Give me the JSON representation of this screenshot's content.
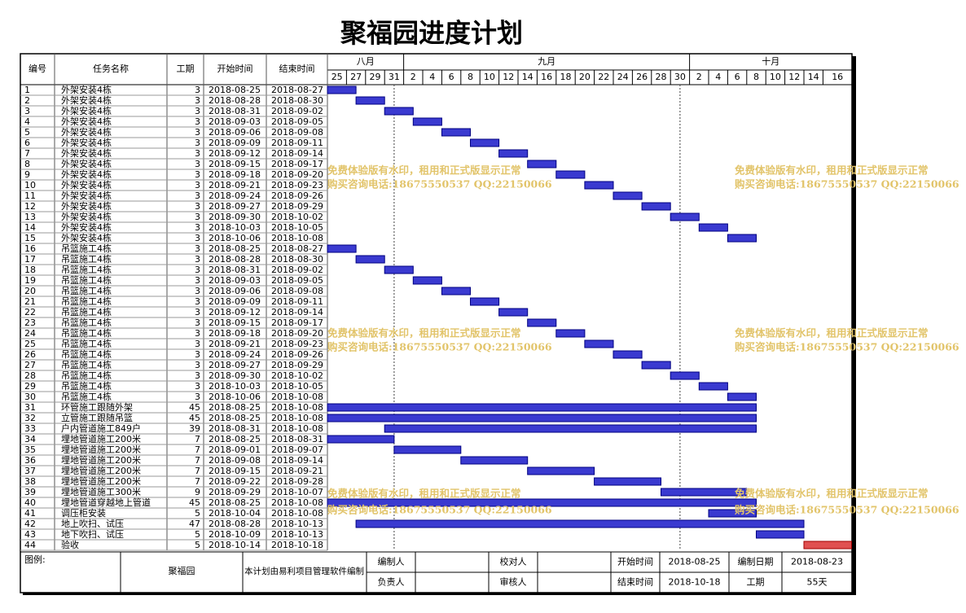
{
  "chart_data": {
    "type": "gantt",
    "title": "聚福园进度计划",
    "columns": [
      "编号",
      "任务名称",
      "工期",
      "开始时间",
      "结束时间"
    ],
    "months": [
      "八月",
      "九月",
      "十月"
    ],
    "days": [
      25,
      27,
      29,
      31,
      2,
      4,
      6,
      8,
      10,
      12,
      14,
      16,
      18,
      20,
      22,
      24,
      26,
      28,
      30,
      2,
      4,
      6,
      8,
      10,
      12,
      14,
      16
    ],
    "tasks": [
      [
        1,
        "外架安装4栋",
        3,
        "2018-08-25",
        "2018-08-27"
      ],
      [
        2,
        "外架安装4栋",
        3,
        "2018-08-28",
        "2018-08-30"
      ],
      [
        3,
        "外架安装4栋",
        3,
        "2018-08-31",
        "2018-09-02"
      ],
      [
        4,
        "外架安装4栋",
        3,
        "2018-09-03",
        "2018-09-05"
      ],
      [
        5,
        "外架安装4栋",
        3,
        "2018-09-06",
        "2018-09-08"
      ],
      [
        6,
        "外架安装4栋",
        3,
        "2018-09-09",
        "2018-09-11"
      ],
      [
        7,
        "外架安装4栋",
        3,
        "2018-09-12",
        "2018-09-14"
      ],
      [
        8,
        "外架安装4栋",
        3,
        "2018-09-15",
        "2018-09-17"
      ],
      [
        9,
        "外架安装4栋",
        3,
        "2018-09-18",
        "2018-09-20"
      ],
      [
        10,
        "外架安装4栋",
        3,
        "2018-09-21",
        "2018-09-23"
      ],
      [
        11,
        "外架安装4栋",
        3,
        "2018-09-24",
        "2018-09-26"
      ],
      [
        12,
        "外架安装4栋",
        3,
        "2018-09-27",
        "2018-09-29"
      ],
      [
        13,
        "外架安装4栋",
        3,
        "2018-09-30",
        "2018-10-02"
      ],
      [
        14,
        "外架安装4栋",
        3,
        "2018-10-03",
        "2018-10-05"
      ],
      [
        15,
        "外架安装4栋",
        3,
        "2018-10-06",
        "2018-10-08"
      ],
      [
        16,
        "吊篮施工4栋",
        3,
        "2018-08-25",
        "2018-08-27"
      ],
      [
        17,
        "吊篮施工4栋",
        3,
        "2018-08-28",
        "2018-08-30"
      ],
      [
        18,
        "吊篮施工4栋",
        3,
        "2018-08-31",
        "2018-09-02"
      ],
      [
        19,
        "吊篮施工4栋",
        3,
        "2018-09-03",
        "2018-09-05"
      ],
      [
        20,
        "吊篮施工4栋",
        3,
        "2018-09-06",
        "2018-09-08"
      ],
      [
        21,
        "吊篮施工4栋",
        3,
        "2018-09-09",
        "2018-09-11"
      ],
      [
        22,
        "吊篮施工4栋",
        3,
        "2018-09-12",
        "2018-09-14"
      ],
      [
        23,
        "吊篮施工4栋",
        3,
        "2018-09-15",
        "2018-09-17"
      ],
      [
        24,
        "吊篮施工4栋",
        3,
        "2018-09-18",
        "2018-09-20"
      ],
      [
        25,
        "吊篮施工4栋",
        3,
        "2018-09-21",
        "2018-09-23"
      ],
      [
        26,
        "吊篮施工4栋",
        3,
        "2018-09-24",
        "2018-09-26"
      ],
      [
        27,
        "吊篮施工4栋",
        3,
        "2018-09-27",
        "2018-09-29"
      ],
      [
        28,
        "吊篮施工4栋",
        3,
        "2018-09-30",
        "2018-10-02"
      ],
      [
        29,
        "吊篮施工4栋",
        3,
        "2018-10-03",
        "2018-10-05"
      ],
      [
        30,
        "吊篮施工4栋",
        3,
        "2018-10-06",
        "2018-10-08"
      ],
      [
        31,
        "环管施工跟随外架",
        45,
        "2018-08-25",
        "2018-10-08"
      ],
      [
        32,
        "立管施工跟随吊篮",
        45,
        "2018-08-25",
        "2018-10-08"
      ],
      [
        33,
        "户内管道施工849户",
        39,
        "2018-08-31",
        "2018-10-08"
      ],
      [
        34,
        "埋地管道施工200米",
        7,
        "2018-08-25",
        "2018-08-31"
      ],
      [
        35,
        "埋地管道施工200米",
        7,
        "2018-09-01",
        "2018-09-07"
      ],
      [
        36,
        "埋地管道施工200米",
        7,
        "2018-09-08",
        "2018-09-14"
      ],
      [
        37,
        "埋地管道施工200米",
        7,
        "2018-09-15",
        "2018-09-21"
      ],
      [
        38,
        "埋地管道施工200米",
        7,
        "2018-09-22",
        "2018-09-28"
      ],
      [
        39,
        "埋地管道施工300米",
        9,
        "2018-09-29",
        "2018-10-07"
      ],
      [
        40,
        "埋地管道穿越地上管道",
        45,
        "2018-08-25",
        "2018-10-08"
      ],
      [
        41,
        "调压柜安装",
        5,
        "2018-10-04",
        "2018-10-08"
      ],
      [
        42,
        "地上吹扫、试压",
        47,
        "2018-08-28",
        "2018-10-13"
      ],
      [
        43,
        "地下吹扫、试压",
        5,
        "2018-10-09",
        "2018-10-13"
      ],
      [
        44,
        "验收",
        5,
        "2018-10-14",
        "2018-10-18"
      ]
    ],
    "watermark": [
      "免费体验版有水印，租用和正式版显示正常",
      "购买咨询电话:18675550537 QQ:22150066"
    ],
    "footer": {
      "legend_label": "图例:",
      "project": "聚福园",
      "note": "本计划由易利项目管理软件编制",
      "compiler_label": "编制人",
      "checker_label": "校对人",
      "start_label": "开始时间",
      "start": "2018-08-25",
      "date_label": "编制日期",
      "date": "2018-08-23",
      "owner_label": "负责人",
      "reviewer_label": "审核人",
      "end_label": "结束时间",
      "end": "2018-10-18",
      "duration_label": "工期",
      "duration": "55天"
    }
  }
}
